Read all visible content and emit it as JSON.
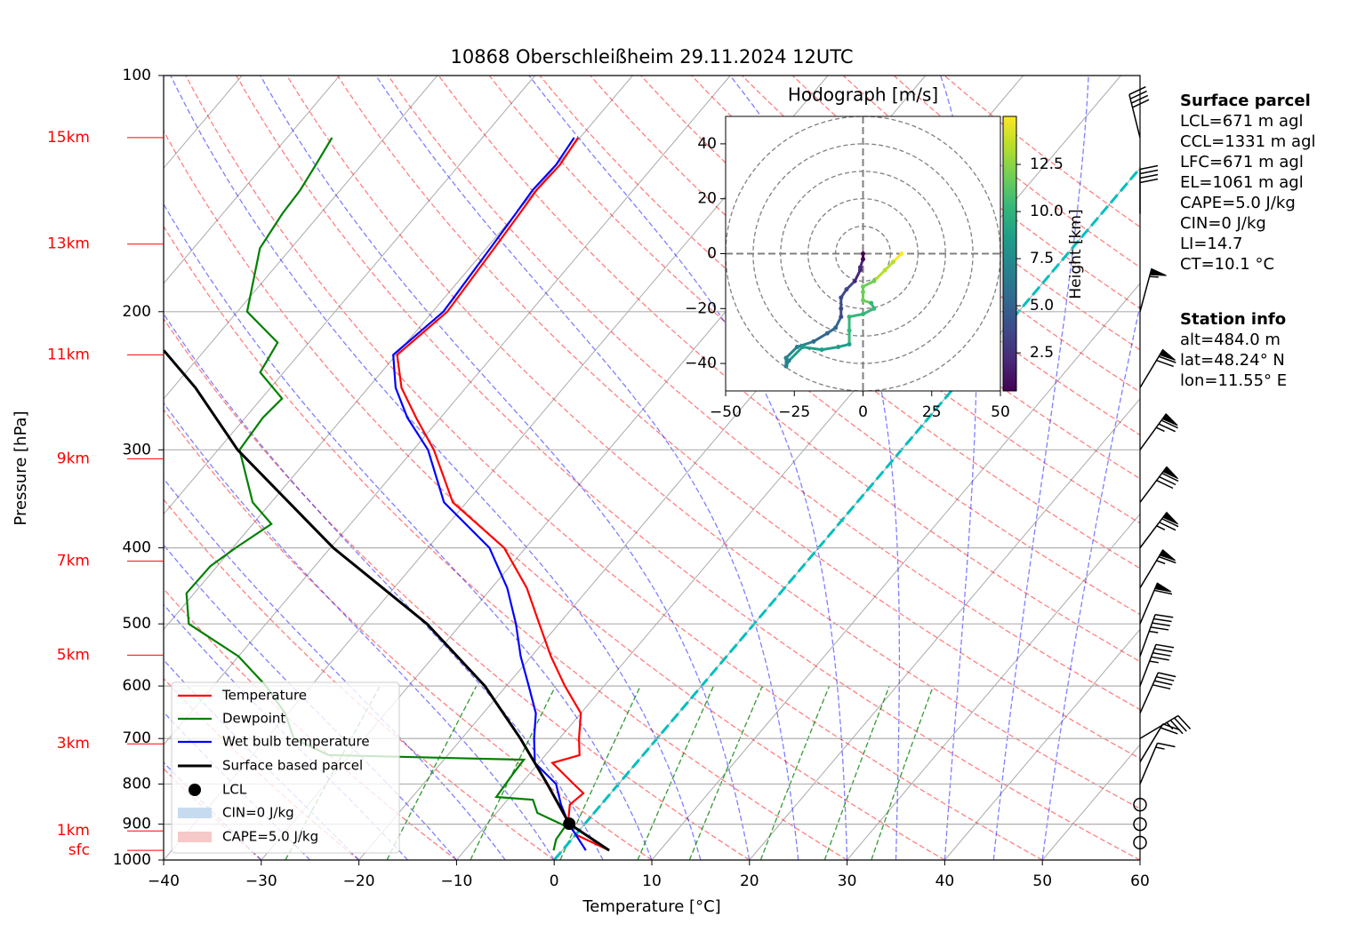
{
  "chart_data": {
    "type": "skewt",
    "title": "10868 Oberschleißheim 29.11.2024 12UTC",
    "x_label": "Temperature [°C]",
    "y_label": "Pressure [hPa]",
    "xlim": [
      -40,
      60
    ],
    "xticks": [
      {
        "value": -40,
        "label": "−40"
      },
      {
        "value": -30,
        "label": "−30"
      },
      {
        "value": -20,
        "label": "−20"
      },
      {
        "value": -10,
        "label": "−10"
      },
      0,
      10,
      20,
      30,
      40,
      50,
      60
    ],
    "ylim": [
      1000,
      100
    ],
    "log_y": true,
    "grid": true,
    "yticks": [
      1000,
      900,
      800,
      700,
      600,
      500,
      400,
      300,
      200,
      100
    ],
    "legend": "lower left",
    "series": [
      {
        "name": "Temperature",
        "color": "#ff0000",
        "pressure": [
          120,
          130,
          140,
          150,
          166,
          200,
          227,
          250,
          273,
          300,
          350,
          400,
          450,
          500,
          550,
          600,
          650,
          700,
          735,
          752,
          800,
          822,
          850,
          900,
          929,
          972
        ],
        "values": [
          -60.2,
          -59.7,
          -59.9,
          -59.6,
          -59.2,
          -58.5,
          -59.9,
          -56.6,
          -52.5,
          -47.9,
          -41.4,
          -32.2,
          -26.4,
          -22.0,
          -18.0,
          -14.0,
          -10.0,
          -8.0,
          -6.5,
          -8.6,
          -4.6,
          -2.8,
          -3.2,
          -1.7,
          0.1,
          4.8
        ]
      },
      {
        "name": "Dewpoint",
        "color": "#008000",
        "pressure": [
          120,
          130,
          140,
          150,
          166,
          200,
          219,
          239,
          258,
          273,
          300,
          350,
          373,
          400,
          422,
          457,
          500,
          550,
          600,
          650,
          700,
          735,
          745,
          775,
          831,
          838,
          871,
          905,
          941,
          972
        ],
        "values": [
          -85.4,
          -84.7,
          -84.1,
          -83.9,
          -83.2,
          -79.0,
          -73.2,
          -72.4,
          -67.9,
          -68.2,
          -67.8,
          -61.9,
          -58.1,
          -59.7,
          -60.7,
          -60.8,
          -57.9,
          -50.0,
          -44.6,
          -40.3,
          -37.2,
          -32.2,
          -11.8,
          -11.7,
          -11.4,
          -7.4,
          -5.8,
          -1.8,
          -1.6,
          -0.9
        ]
      },
      {
        "name": "Wet bulb temperature",
        "color": "#0000ff",
        "pressure": [
          120,
          130,
          140,
          150,
          166,
          200,
          227,
          250,
          273,
          300,
          350,
          400,
          450,
          500,
          550,
          600,
          650,
          700,
          752,
          800,
          850,
          900,
          972
        ],
        "values": [
          -60.6,
          -60.1,
          -60.3,
          -60.0,
          -59.6,
          -58.9,
          -60.3,
          -57.2,
          -53.4,
          -48.5,
          -42.3,
          -33.7,
          -28.4,
          -24.4,
          -21.1,
          -17.7,
          -14.6,
          -12.6,
          -10.4,
          -6.4,
          -4.1,
          -1.6,
          2.4
        ]
      },
      {
        "name": "Surface based parcel",
        "color": "#000000",
        "pressure": [
          224,
          250,
          300,
          400,
          500,
          600,
          700,
          800,
          899,
          972
        ],
        "values": [
          -84.2,
          -77.7,
          -68.0,
          -49.7,
          -33.5,
          -22.2,
          -14.0,
          -7.3,
          -1.6,
          4.8
        ]
      }
    ],
    "lcl": {
      "name": "LCL",
      "color": "#000000",
      "pressure": 899,
      "value": -1.6
    },
    "cin": {
      "name": "CIN=0 J/kg",
      "color": "#c6dbef"
    },
    "cape": {
      "name": "CAPE=5.0 J/kg",
      "color": "#f6c9c9"
    },
    "height_labels": [
      {
        "label": "15km",
        "pressure": 120
      },
      {
        "label": "13km",
        "pressure": 164
      },
      {
        "label": "11km",
        "pressure": 227
      },
      {
        "label": "9km",
        "pressure": 308
      },
      {
        "label": "7km",
        "pressure": 416
      },
      {
        "label": "5km",
        "pressure": 548
      },
      {
        "label": "3km",
        "pressure": 711
      },
      {
        "label": "1km",
        "pressure": 918
      },
      {
        "label": "sfc",
        "pressure": 972
      }
    ],
    "barbs": {
      "pressure": [
        120,
        150,
        200,
        250,
        300,
        350,
        400,
        450,
        500,
        550,
        600,
        650,
        700,
        750,
        800,
        850,
        900,
        950
      ],
      "direction": [
        346,
        0,
        15,
        31,
        36,
        37,
        37,
        31,
        23,
        20,
        21,
        24,
        59,
        31,
        23,
        0,
        0,
        0
      ],
      "speed": [
        40,
        40,
        55,
        70,
        75,
        80,
        75,
        65,
        60,
        45,
        45,
        40,
        35,
        20,
        15,
        0,
        0,
        0
      ]
    },
    "hodograph": {
      "title": "Hodograph [m/s]",
      "xlim": [
        -50,
        50
      ],
      "ylim": [
        -50,
        50
      ],
      "xticks": [
        {
          "value": -50,
          "label": "−50"
        },
        {
          "value": -25,
          "label": "−25"
        },
        0,
        25,
        50
      ],
      "yticks": [
        {
          "value": -40,
          "label": "−40"
        },
        {
          "value": -20,
          "label": "−20"
        },
        0,
        20,
        40
      ],
      "u": [
        0,
        0,
        -1,
        -1,
        -3,
        -6,
        -8,
        -8,
        -8,
        -10,
        -13,
        -18,
        -24,
        -28,
        -28,
        -27,
        -22,
        -15,
        -9,
        -5,
        -5,
        -5,
        0,
        4,
        3,
        0,
        0,
        0,
        4,
        8,
        11,
        14
      ],
      "v": [
        0,
        -2,
        -5,
        -6,
        -10,
        -13,
        -16,
        -20,
        -23,
        -27,
        -29,
        -32,
        -34,
        -38,
        -41,
        -39,
        -34,
        -35,
        -34,
        -33,
        -28,
        -23,
        -22,
        -20,
        -18,
        -17,
        -14,
        -12,
        -10,
        -6,
        -3,
        0
      ],
      "height": [
        0.5,
        1.0,
        1.5,
        2.0,
        2.5,
        3.0,
        3.5,
        4.0,
        4.5,
        5.0,
        5.5,
        6.0,
        6.5,
        7.0,
        7.3,
        7.6,
        7.9,
        8.3,
        8.7,
        9.0,
        9.4,
        9.8,
        10.2,
        10.6,
        11.0,
        11.4,
        11.8,
        12.2,
        12.6,
        13.2,
        13.8,
        14.4
      ],
      "colorbar_label": "Height [km]",
      "colorbar_lim": [
        0.48,
        15.05
      ],
      "colorbar_ticks": [
        2.5,
        {
          "value": 5,
          "label": "5.0"
        },
        7.5,
        {
          "value": 10,
          "label": "10.0"
        },
        12.5
      ]
    }
  },
  "surface_parcel": {
    "title": "Surface parcel",
    "lines": [
      "LCL=671 m agl",
      "CCL=1331 m agl",
      "LFC=671 m agl",
      "EL=1061 m agl",
      "CAPE=5.0 J/kg",
      "CIN=0 J/kg",
      "LI=14.7",
      "CT=10.1 °C"
    ]
  },
  "station_info": {
    "title": "Station info",
    "lines": [
      "alt=484.0 m",
      "lat=48.24° N",
      "lon=11.55° E"
    ]
  }
}
